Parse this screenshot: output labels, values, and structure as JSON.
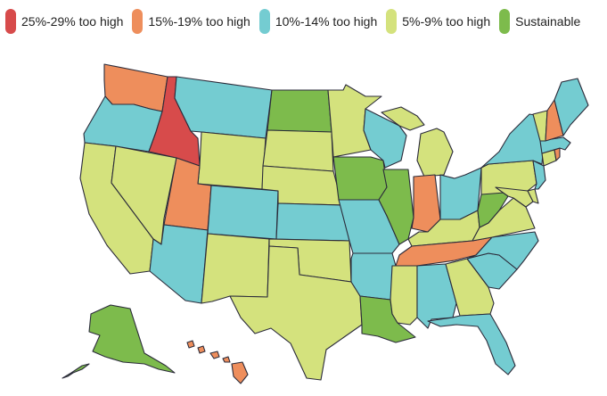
{
  "legend": [
    {
      "key": "r25",
      "label": "25%-29% too high",
      "color": "#d74b4b"
    },
    {
      "key": "r15",
      "label": "15%-19% too high",
      "color": "#ee8e5c"
    },
    {
      "key": "r10",
      "label": "10%-14% too high",
      "color": "#74ccd1"
    },
    {
      "key": "r5",
      "label": "5%-9% too high",
      "color": "#d4e27d"
    },
    {
      "key": "sus",
      "label": "Sustainable",
      "color": "#7dbb4c"
    }
  ],
  "states": {
    "WA": "r15",
    "OR": "r10",
    "CA": "r5",
    "NV": "r5",
    "ID": "r25",
    "MT": "r10",
    "WY": "r5",
    "UT": "r15",
    "AZ": "r10",
    "CO": "r10",
    "NM": "r5",
    "ND": "sus",
    "SD": "r5",
    "NE": "r5",
    "KS": "r10",
    "OK": "r5",
    "TX": "r5",
    "MN": "r5",
    "IA": "sus",
    "MO": "r10",
    "AR": "r10",
    "LA": "sus",
    "WI": "r10",
    "IL": "sus",
    "MI": "r5",
    "IN": "r15",
    "OH": "r10",
    "KY": "r5",
    "TN": "r15",
    "MS": "r5",
    "AL": "r10",
    "GA": "r5",
    "FL": "r10",
    "SC": "r10",
    "NC": "r10",
    "VA": "r5",
    "WV": "sus",
    "PA": "r5",
    "NY": "r10",
    "MD": "r5",
    "DE": "r5",
    "NJ": "r10",
    "CT": "r5",
    "RI": "r15",
    "MA": "r10",
    "VT": "r5",
    "NH": "r15",
    "ME": "r10",
    "AK": "sus",
    "HI": "r15"
  }
}
